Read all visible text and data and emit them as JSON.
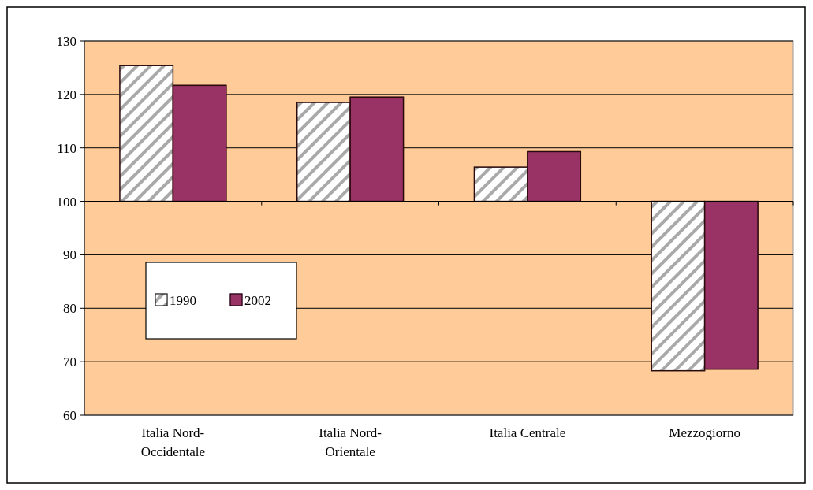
{
  "chart_data": {
    "type": "bar",
    "categories": [
      "Italia Nord-Occidentale",
      "Italia Nord-Orientale",
      "Italia Centrale",
      "Mezzogiorno"
    ],
    "series": [
      {
        "name": "1990",
        "color": "#a9a9a9",
        "base": [
          100,
          100,
          100,
          100
        ],
        "values": [
          25.4,
          18.5,
          6.4,
          -31.7
        ]
      },
      {
        "name": "2002",
        "color": "#993366",
        "base": [
          100,
          100,
          100,
          100
        ],
        "values": [
          21.7,
          19.5,
          9.3,
          -31.4
        ]
      }
    ],
    "ylim": [
      60,
      130
    ],
    "yticks": [
      60,
      70,
      80,
      90,
      100,
      110,
      120,
      130
    ],
    "grid": "y",
    "legend": "left"
  }
}
